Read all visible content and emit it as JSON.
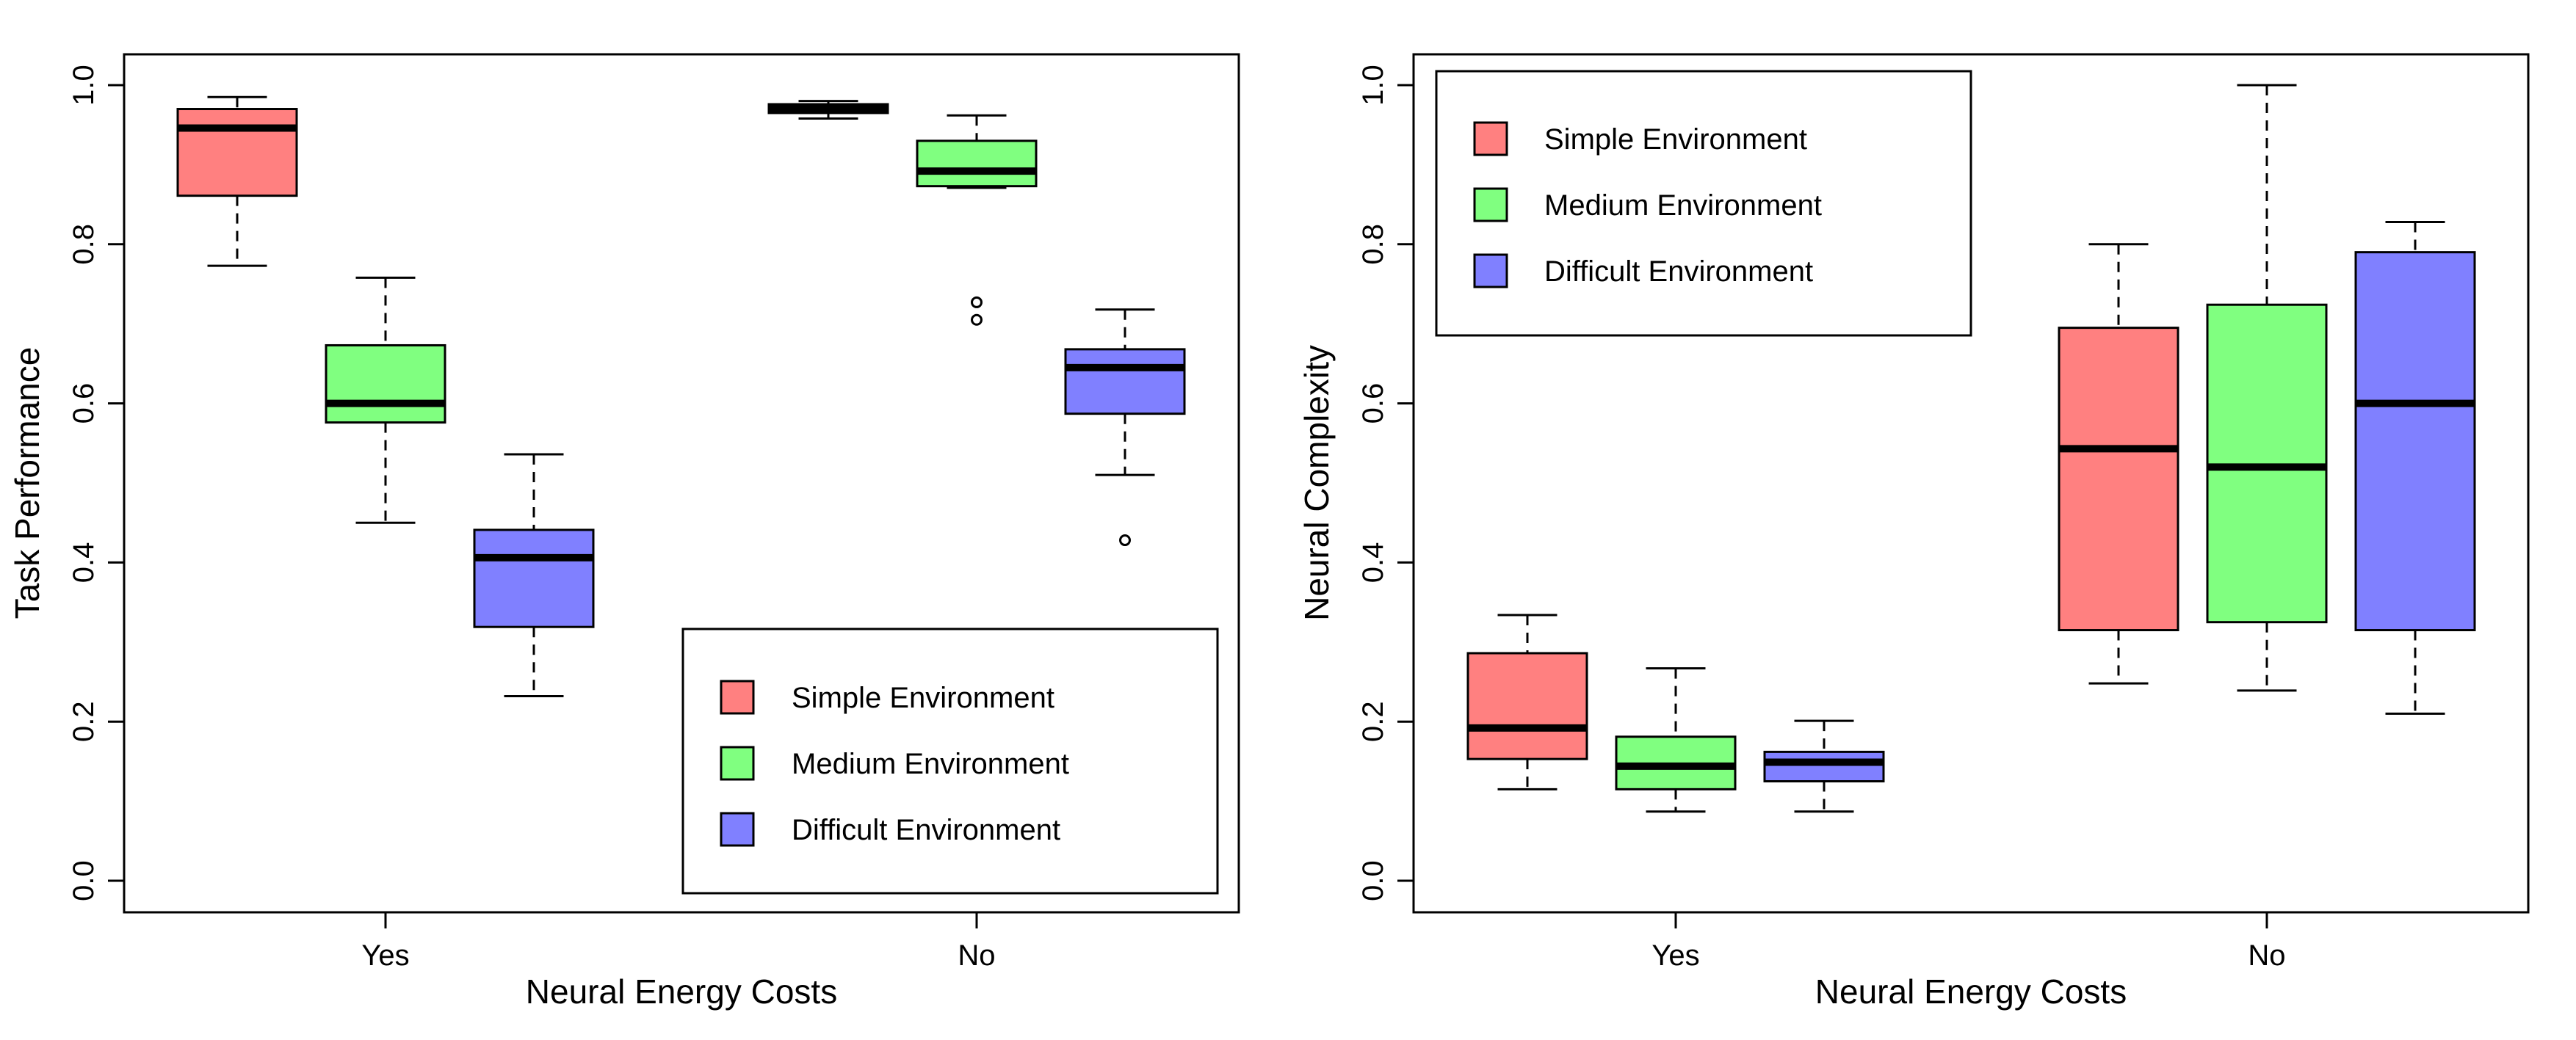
{
  "chart_data": [
    {
      "type": "boxplot",
      "title": "",
      "xlabel": "Neural Energy Costs",
      "ylabel": "Task Performance",
      "categories": [
        "Yes",
        "No"
      ],
      "ylim": [
        0,
        1
      ],
      "yticks": [
        "0.0",
        "0.2",
        "0.4",
        "0.6",
        "0.8",
        "1.0"
      ],
      "grid": false,
      "legend_position": "bottom-right",
      "series": [
        {
          "name": "Simple Environment",
          "color": "#ff8080",
          "boxes": [
            {
              "category": "Yes",
              "min": 0.773,
              "q1": 0.861,
              "median": 0.946,
              "q3": 0.97,
              "max": 0.985,
              "outliers": []
            },
            {
              "category": "No",
              "min": 0.958,
              "q1": 0.965,
              "median": 0.97,
              "q3": 0.976,
              "max": 0.98,
              "outliers": []
            }
          ]
        },
        {
          "name": "Medium Environment",
          "color": "#80ff80",
          "boxes": [
            {
              "category": "Yes",
              "min": 0.45,
              "q1": 0.576,
              "median": 0.6,
              "q3": 0.673,
              "max": 0.758,
              "outliers": []
            },
            {
              "category": "No",
              "min": 0.871,
              "q1": 0.873,
              "median": 0.892,
              "q3": 0.93,
              "max": 0.962,
              "outliers": [
                0.727,
                0.705
              ]
            }
          ]
        },
        {
          "name": "Difficult Environment",
          "color": "#8080ff",
          "boxes": [
            {
              "category": "Yes",
              "min": 0.232,
              "q1": 0.319,
              "median": 0.406,
              "q3": 0.441,
              "max": 0.536,
              "outliers": []
            },
            {
              "category": "No",
              "min": 0.51,
              "q1": 0.587,
              "median": 0.645,
              "q3": 0.668,
              "max": 0.718,
              "outliers": [
                0.428
              ]
            }
          ]
        }
      ]
    },
    {
      "type": "boxplot",
      "title": "",
      "xlabel": "Neural Energy Costs",
      "ylabel": "Neural Complexity",
      "categories": [
        "Yes",
        "No"
      ],
      "ylim": [
        0,
        1
      ],
      "yticks": [
        "0.0",
        "0.2",
        "0.4",
        "0.6",
        "0.8",
        "1.0"
      ],
      "grid": false,
      "legend_position": "top-left",
      "series": [
        {
          "name": "Simple Environment",
          "color": "#ff8080",
          "boxes": [
            {
              "category": "Yes",
              "min": 0.115,
              "q1": 0.153,
              "median": 0.192,
              "q3": 0.286,
              "max": 0.334,
              "outliers": []
            },
            {
              "category": "No",
              "min": 0.248,
              "q1": 0.315,
              "median": 0.543,
              "q3": 0.695,
              "max": 0.8,
              "outliers": []
            }
          ]
        },
        {
          "name": "Medium Environment",
          "color": "#80ff80",
          "boxes": [
            {
              "category": "Yes",
              "min": 0.087,
              "q1": 0.115,
              "median": 0.144,
              "q3": 0.181,
              "max": 0.267,
              "outliers": []
            },
            {
              "category": "No",
              "min": 0.239,
              "q1": 0.325,
              "median": 0.52,
              "q3": 0.724,
              "max": 1.0,
              "outliers": []
            }
          ]
        },
        {
          "name": "Difficult Environment",
          "color": "#8080ff",
          "boxes": [
            {
              "category": "Yes",
              "min": 0.087,
              "q1": 0.125,
              "median": 0.149,
              "q3": 0.162,
              "max": 0.201,
              "outliers": []
            },
            {
              "category": "No",
              "min": 0.21,
              "q1": 0.315,
              "median": 0.6,
              "q3": 0.79,
              "max": 0.828,
              "outliers": []
            }
          ]
        }
      ]
    }
  ]
}
